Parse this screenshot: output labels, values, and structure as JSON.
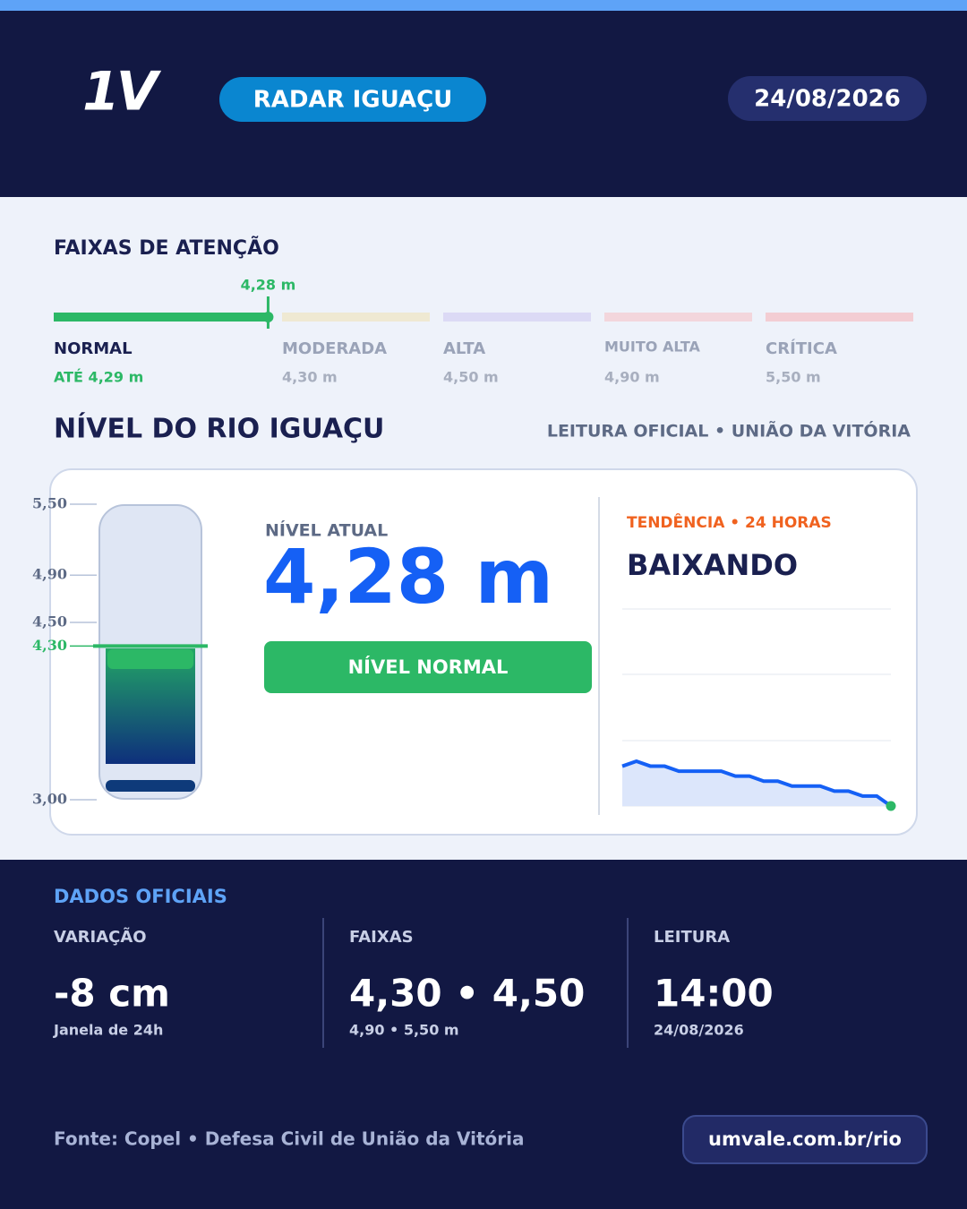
{
  "logo": "1V",
  "header": {
    "title": "RADAR IGUAÇU",
    "date": "24/08/2026"
  },
  "current": {
    "value": 4.28,
    "label": "4,28 m"
  },
  "bands": {
    "title": "FAIXAS DE ATENÇÃO",
    "items": [
      {
        "name": "NORMAL",
        "value": 4.29,
        "label": "ATÉ 4,29 m",
        "color": "#2cb866"
      },
      {
        "name": "MODERADA",
        "value": 4.3,
        "label": "4,30 m",
        "color": "#efe9d2"
      },
      {
        "name": "ALTA",
        "value": 4.5,
        "label": "4,50 m",
        "color": "#dcdaf5"
      },
      {
        "name": "MUITO ALTA",
        "value": 4.9,
        "label": "4,90 m",
        "color": "#f3d6dc"
      },
      {
        "name": "CRÍTICA",
        "value": 5.5,
        "label": "5,50 m",
        "color": "#f3cdd3"
      }
    ]
  },
  "level": {
    "title": "NÍVEL DO RIO IGUAÇU",
    "source": "LEITURA OFICIAL • UNIÃO DA VITÓRIA",
    "current_title": "NÍVEL ATUAL",
    "status": "NÍVEL NORMAL"
  },
  "gauge": {
    "ylim": [
      3,
      5.5
    ],
    "yticks": [
      {
        "value": 5.5,
        "label": "5,50"
      },
      {
        "value": 4.9,
        "label": "4,90"
      },
      {
        "value": 4.5,
        "label": "4,50"
      },
      {
        "value": 4.3,
        "label": "4,30"
      },
      {
        "value": 3,
        "label": "3,00"
      }
    ]
  },
  "trend": {
    "title": "TENDÊNCIA • 24 HORAS",
    "status": "BAIXANDO",
    "values": [
      4.36,
      4.37,
      4.36,
      4.36,
      4.35,
      4.35,
      4.35,
      4.35,
      4.34,
      4.34,
      4.33,
      4.33,
      4.32,
      4.32,
      4.32,
      4.31,
      4.31,
      4.3,
      4.3,
      4.28
    ]
  },
  "official": {
    "title": "DADOS OFICIAIS",
    "stats": [
      {
        "label": "VARIAÇÃO",
        "value": "-8 cm",
        "note": "Janela de 24h"
      },
      {
        "label": "FAIXAS",
        "value": "4,30 • 4,50",
        "note": "4,90 • 5,50 m"
      },
      {
        "label": "LEITURA",
        "value": "14:00",
        "note": "24/08/2026"
      }
    ]
  },
  "footer": {
    "source": "Fonte: Copel • Defesa Civil de União da Vitória",
    "url": "umvale.com.br/rio"
  }
}
